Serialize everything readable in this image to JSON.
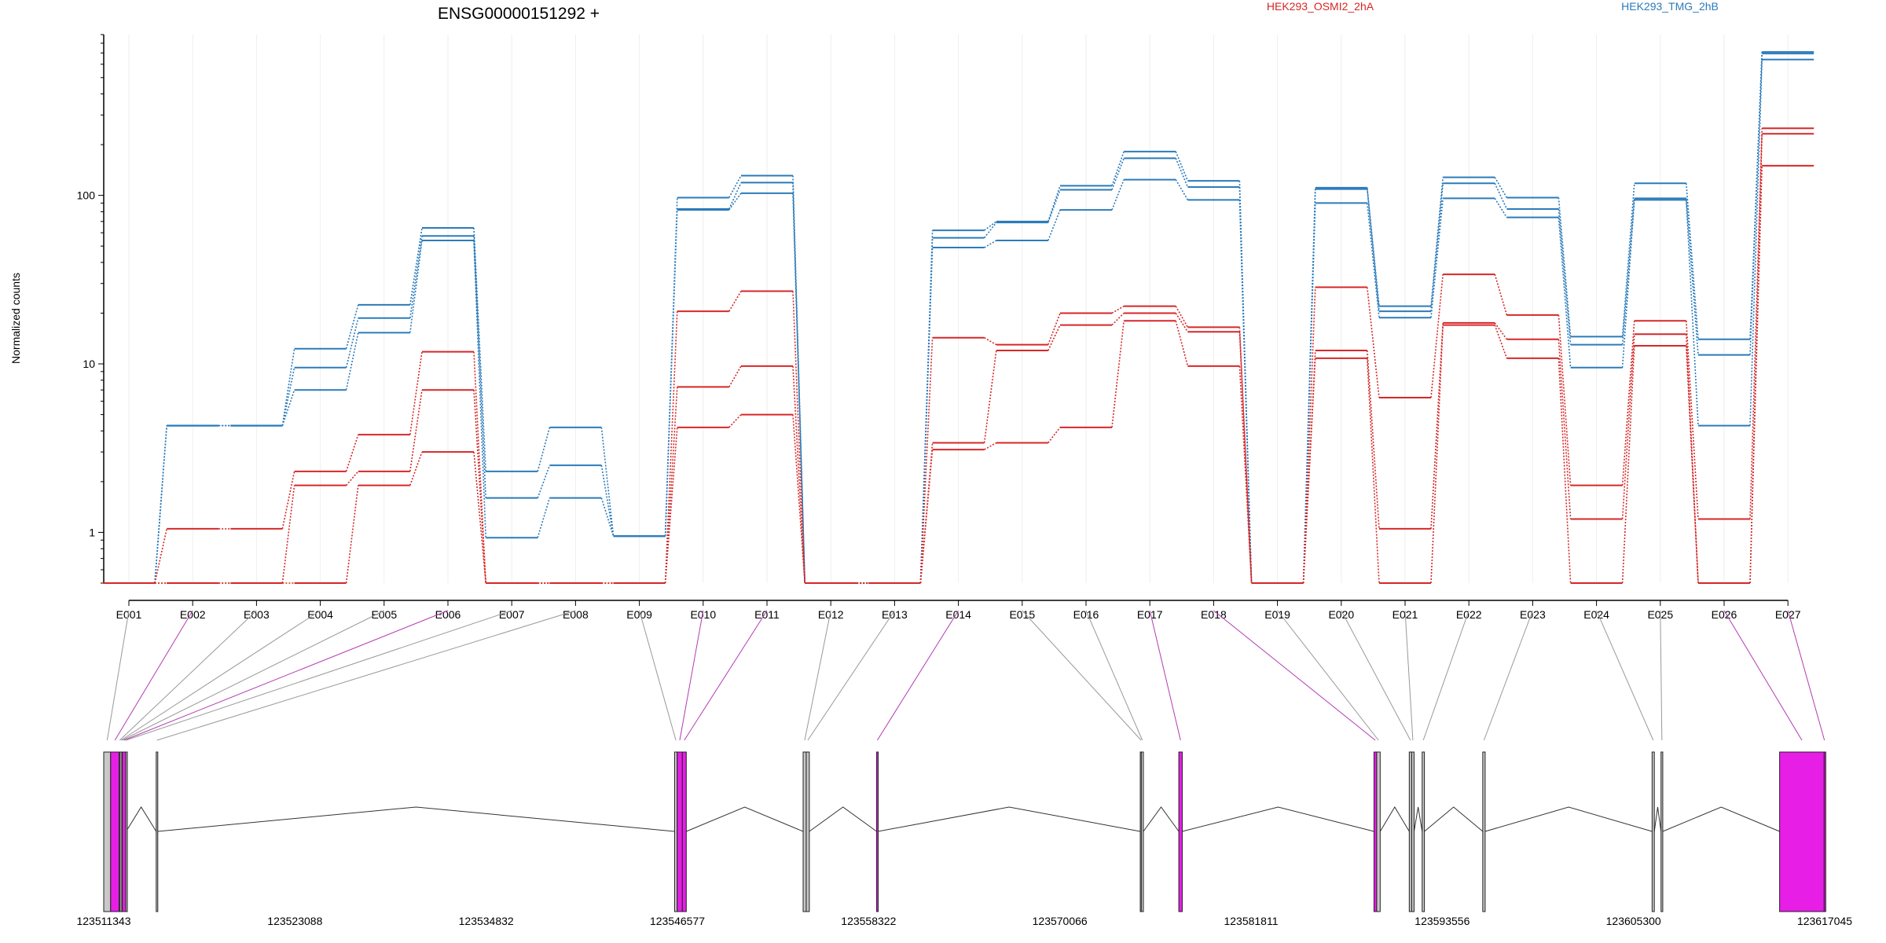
{
  "chart_data": {
    "type": "line",
    "title": "ENSG00000151292 +",
    "ylabel": "Normalized counts",
    "xlabel": "",
    "y_scale": "log",
    "ylim": [
      0.5,
      900
    ],
    "y_ticks": [
      1,
      10,
      100
    ],
    "y_tick_labels": [
      "1",
      "10",
      "100"
    ],
    "legend": {
      "placement": "top",
      "entries": [
        {
          "name": "HEK293_OSMI2_2hA",
          "color": "#d62728"
        },
        {
          "name": "HEK293_TMG_2hB",
          "color": "#2b7bba"
        }
      ]
    },
    "categories": [
      "E001",
      "E002",
      "E003",
      "E004",
      "E005",
      "E006",
      "E007",
      "E008",
      "E009",
      "E010",
      "E011",
      "E012",
      "E013",
      "E014",
      "E015",
      "E016",
      "E017",
      "E018",
      "E019",
      "E020",
      "E021",
      "E022",
      "E023",
      "E024",
      "E025",
      "E026",
      "E027"
    ],
    "series": [
      {
        "group": "HEK293_TMG_2hB",
        "color": "#2b7bba",
        "values": [
          0.5,
          4.3,
          4.3,
          12.3,
          22.4,
          64.1,
          2.3,
          4.2,
          0.95,
          97.0,
          131.0,
          0.5,
          0.5,
          62.0,
          70.0,
          114.0,
          182.0,
          122.0,
          0.5,
          111.0,
          22.0,
          128.0,
          97.0,
          14.5,
          118.0,
          14.0,
          710.0
        ]
      },
      {
        "group": "HEK293_TMG_2hB",
        "color": "#2b7bba",
        "values": [
          0.5,
          4.3,
          4.3,
          9.5,
          18.7,
          57.4,
          1.6,
          2.5,
          0.95,
          83.0,
          119.0,
          0.5,
          0.5,
          56.0,
          69.0,
          108.0,
          166.0,
          112.0,
          0.5,
          109.0,
          20.5,
          118.0,
          83.0,
          13.0,
          96.0,
          11.3,
          695.0
        ]
      },
      {
        "group": "HEK293_TMG_2hB",
        "color": "#2b7bba",
        "values": [
          0.5,
          4.3,
          4.3,
          7.0,
          15.3,
          54.0,
          0.93,
          1.6,
          0.95,
          82.0,
          103.0,
          0.5,
          0.5,
          49.0,
          54.0,
          82.0,
          124.0,
          94.0,
          0.5,
          90.0,
          18.8,
          96.0,
          74.0,
          9.5,
          94.0,
          4.3,
          640.0
        ]
      },
      {
        "group": "HEK293_OSMI2_2hA",
        "color": "#d62728",
        "values": [
          0.5,
          1.05,
          1.05,
          2.3,
          3.8,
          11.8,
          0.5,
          0.5,
          0.5,
          20.5,
          27.0,
          0.5,
          0.5,
          14.3,
          13.0,
          20.0,
          22.0,
          16.5,
          0.5,
          28.5,
          6.3,
          34.0,
          19.5,
          1.9,
          18.0,
          1.2,
          250.0
        ]
      },
      {
        "group": "HEK293_OSMI2_2hA",
        "color": "#d62728",
        "values": [
          0.5,
          0.5,
          0.5,
          1.9,
          2.3,
          7.0,
          0.5,
          0.5,
          0.5,
          7.3,
          9.7,
          0.5,
          0.5,
          3.4,
          12.0,
          17.0,
          20.0,
          15.5,
          0.5,
          12.0,
          1.05,
          17.5,
          14.0,
          1.2,
          15.0,
          0.5,
          232.0
        ]
      },
      {
        "group": "HEK293_OSMI2_2hA",
        "color": "#d62728",
        "values": [
          0.5,
          0.5,
          0.5,
          0.5,
          1.9,
          3.0,
          0.5,
          0.5,
          0.5,
          4.2,
          5.0,
          0.5,
          0.5,
          3.1,
          3.4,
          4.2,
          18.0,
          9.7,
          0.5,
          10.8,
          0.5,
          17.0,
          10.8,
          0.5,
          12.8,
          0.5,
          150.0
        ]
      }
    ],
    "exon_highlight": [
      false,
      true,
      false,
      false,
      false,
      true,
      false,
      false,
      false,
      true,
      true,
      false,
      false,
      true,
      false,
      false,
      true,
      true,
      false,
      false,
      false,
      false,
      false,
      false,
      false,
      true,
      true
    ],
    "genomic_axis": {
      "tick_labels": [
        "123511343",
        "123523088",
        "123534832",
        "123546577",
        "123558322",
        "123570066",
        "123581811",
        "123593556",
        "123605300",
        "123617045"
      ]
    },
    "colors": {
      "highlight_exon": "#e61ee6",
      "exon": "#c8c8c8",
      "connector_default": "#999999",
      "connector_highlight": "#b23cb2",
      "intron": "#333333"
    }
  }
}
